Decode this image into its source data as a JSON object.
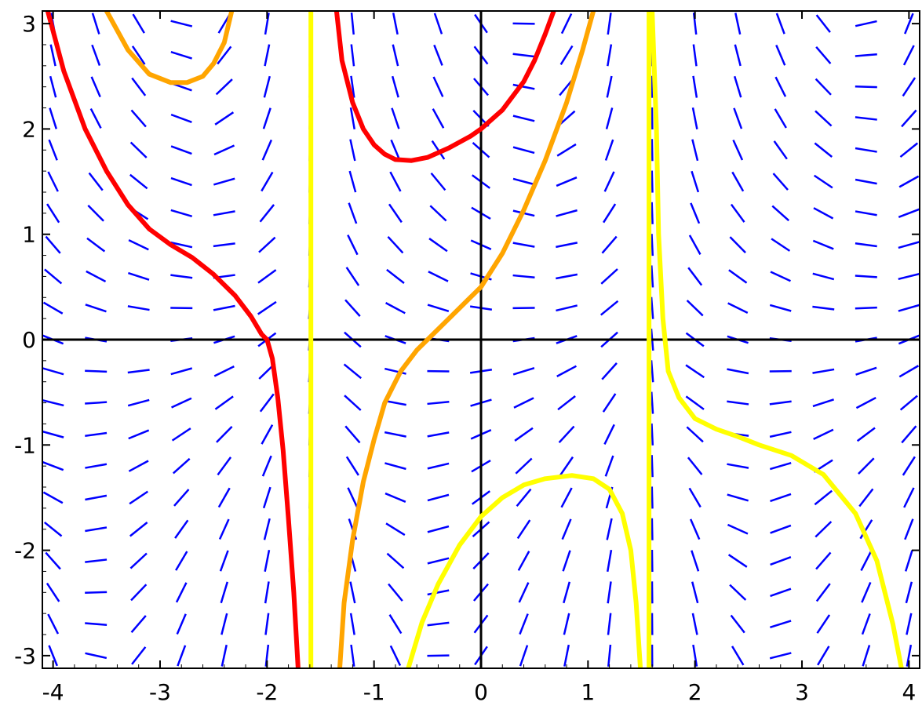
{
  "chart_data": {
    "type": "line",
    "title": "",
    "xlabel": "",
    "ylabel": "",
    "xlim": [
      -4.1,
      4.1
    ],
    "ylim": [
      -3.12,
      3.12
    ],
    "grid": false,
    "x_ticks": [
      -4,
      -3,
      -2,
      -1,
      0,
      1,
      2,
      3,
      4
    ],
    "y_ticks": [
      -3,
      -2,
      -1,
      0,
      1,
      2,
      3
    ],
    "x_tick_labels": [
      "-4",
      "-3",
      "-2",
      "-1",
      "0",
      "1",
      "2",
      "3",
      "4"
    ],
    "y_tick_labels": [
      "-3",
      "-2",
      "-1",
      "0",
      "1",
      "2",
      "3"
    ],
    "slope_field": {
      "color": "#0000ff",
      "x_grid": [
        -4.0,
        -3.6,
        -3.2,
        -2.8,
        -2.4,
        -2.0,
        -1.6,
        -1.2,
        -0.8,
        -0.4,
        0.0,
        0.4,
        0.8,
        1.2,
        1.6,
        2.0,
        2.4,
        2.8,
        3.2,
        3.6,
        4.0
      ],
      "y_grid": [
        -3.0,
        -2.7,
        -2.4,
        -2.1,
        -1.8,
        -1.5,
        -1.2,
        -0.9,
        -0.6,
        -0.3,
        0.0,
        0.3,
        0.6,
        0.9,
        1.2,
        1.5,
        1.8,
        2.1,
        2.4,
        2.7,
        3.0
      ]
    },
    "series": [
      {
        "color": "#ff0000",
        "segments": [
          [
            [
              -4.05,
              3.12
            ],
            [
              -3.9,
              2.55
            ],
            [
              -3.7,
              2.0
            ],
            [
              -3.5,
              1.6
            ],
            [
              -3.3,
              1.28
            ],
            [
              -3.1,
              1.05
            ],
            [
              -2.9,
              0.9
            ],
            [
              -2.7,
              0.78
            ],
            [
              -2.5,
              0.62
            ],
            [
              -2.3,
              0.42
            ],
            [
              -2.15,
              0.22
            ],
            [
              -2.05,
              0.05
            ],
            [
              -2.0,
              0.0
            ],
            [
              -1.95,
              -0.18
            ],
            [
              -1.9,
              -0.55
            ],
            [
              -1.85,
              -1.05
            ],
            [
              -1.8,
              -1.7
            ],
            [
              -1.75,
              -2.4
            ],
            [
              -1.71,
              -3.12
            ]
          ],
          [
            [
              -1.35,
              3.12
            ],
            [
              -1.3,
              2.65
            ],
            [
              -1.2,
              2.25
            ],
            [
              -1.1,
              2.0
            ],
            [
              -1.0,
              1.85
            ],
            [
              -0.9,
              1.76
            ],
            [
              -0.8,
              1.71
            ],
            [
              -0.65,
              1.7
            ],
            [
              -0.5,
              1.73
            ],
            [
              -0.3,
              1.82
            ],
            [
              -0.1,
              1.93
            ],
            [
              0.0,
              2.0
            ],
            [
              0.2,
              2.18
            ],
            [
              0.4,
              2.45
            ],
            [
              0.5,
              2.65
            ],
            [
              0.6,
              2.9
            ],
            [
              0.68,
              3.12
            ]
          ]
        ]
      },
      {
        "color": "#ffa500",
        "segments": [
          [
            [
              -3.5,
              3.12
            ],
            [
              -3.3,
              2.75
            ],
            [
              -3.1,
              2.52
            ],
            [
              -2.9,
              2.44
            ],
            [
              -2.75,
              2.44
            ],
            [
              -2.6,
              2.5
            ],
            [
              -2.5,
              2.62
            ],
            [
              -2.4,
              2.82
            ],
            [
              -2.33,
              3.12
            ]
          ],
          [
            [
              -1.32,
              -3.12
            ],
            [
              -1.28,
              -2.5
            ],
            [
              -1.2,
              -1.9
            ],
            [
              -1.1,
              -1.35
            ],
            [
              -1.0,
              -0.95
            ],
            [
              -0.9,
              -0.6
            ],
            [
              -0.75,
              -0.3
            ],
            [
              -0.6,
              -0.1
            ],
            [
              -0.5,
              0.0
            ],
            [
              -0.35,
              0.15
            ],
            [
              -0.2,
              0.3
            ],
            [
              0.0,
              0.5
            ],
            [
              0.2,
              0.82
            ],
            [
              0.4,
              1.23
            ],
            [
              0.6,
              1.7
            ],
            [
              0.8,
              2.25
            ],
            [
              0.95,
              2.75
            ],
            [
              1.05,
              3.12
            ]
          ]
        ]
      },
      {
        "color": "#ffff00",
        "segments": [
          [
            [
              -1.59,
              -3.12
            ],
            [
              -1.59,
              3.12
            ]
          ],
          [
            [
              -0.68,
              -3.12
            ],
            [
              -0.55,
              -2.68
            ],
            [
              -0.4,
              -2.32
            ],
            [
              -0.2,
              -1.95
            ],
            [
              0.0,
              -1.68
            ],
            [
              0.2,
              -1.5
            ],
            [
              0.4,
              -1.38
            ],
            [
              0.6,
              -1.32
            ],
            [
              0.85,
              -1.29
            ],
            [
              1.05,
              -1.32
            ],
            [
              1.2,
              -1.42
            ],
            [
              1.32,
              -1.65
            ],
            [
              1.4,
              -2.0
            ],
            [
              1.45,
              -2.5
            ],
            [
              1.49,
              -3.12
            ]
          ],
          [
            [
              1.57,
              -3.12
            ],
            [
              1.57,
              3.12
            ]
          ],
          [
            [
              1.6,
              3.12
            ],
            [
              1.64,
              2.0
            ],
            [
              1.66,
              1.0
            ],
            [
              1.7,
              0.2
            ],
            [
              1.75,
              -0.3
            ],
            [
              1.85,
              -0.55
            ],
            [
              2.0,
              -0.75
            ],
            [
              2.2,
              -0.85
            ],
            [
              2.4,
              -0.92
            ],
            [
              2.6,
              -1.0
            ],
            [
              2.9,
              -1.1
            ],
            [
              3.2,
              -1.28
            ],
            [
              3.5,
              -1.65
            ],
            [
              3.7,
              -2.1
            ],
            [
              3.85,
              -2.7
            ],
            [
              3.93,
              -3.12
            ]
          ]
        ]
      }
    ]
  }
}
